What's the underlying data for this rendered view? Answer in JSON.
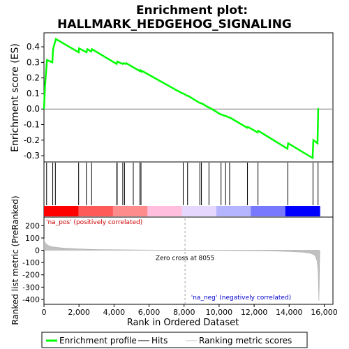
{
  "chart_data": {
    "type": "line",
    "title": "Enrichment plot:\nHALLMARK_HEDGEHOG_SIGNALING",
    "title_lines": [
      "Enrichment plot:",
      "HALLMARK_HEDGEHOG_SIGNALING"
    ],
    "top_panel": {
      "ylabel": "Enrichment score (ES)",
      "ylim": [
        -0.34,
        0.49
      ],
      "yticks": [
        -0.3,
        -0.2,
        -0.1,
        0.0,
        0.1,
        0.2,
        0.3,
        0.4
      ],
      "ytick_labels": [
        "-0.3",
        "-0.2",
        "-0.1",
        "0.0",
        "0.1",
        "0.2",
        "0.3",
        "0.4"
      ],
      "series": [
        {
          "name": "Enrichment profile",
          "color": "#00ff00",
          "x": [
            0,
            60,
            170,
            480,
            520,
            680,
            1980,
            2000,
            2430,
            2470,
            2700,
            2740,
            4150,
            4190,
            4500,
            4540,
            4650,
            4700,
            5460,
            5500,
            5560,
            5600,
            7900,
            7960,
            8180,
            8230,
            8880,
            8920,
            8990,
            9030,
            9400,
            9440,
            10090,
            10130,
            10350,
            10390,
            10580,
            10620,
            11600,
            11640,
            12200,
            12240,
            13900,
            13940,
            15340,
            15380,
            15620,
            15660
          ],
          "y": [
            0.0,
            0.15,
            0.315,
            0.3,
            0.385,
            0.45,
            0.365,
            0.39,
            0.365,
            0.385,
            0.37,
            0.385,
            0.29,
            0.305,
            0.29,
            0.295,
            0.29,
            0.295,
            0.245,
            0.25,
            0.24,
            0.245,
            0.1,
            0.1,
            0.085,
            0.085,
            0.04,
            0.04,
            0.035,
            0.035,
            0.01,
            0.01,
            -0.035,
            -0.035,
            -0.045,
            -0.045,
            -0.055,
            -0.055,
            -0.12,
            -0.115,
            -0.15,
            -0.14,
            -0.255,
            -0.22,
            -0.315,
            -0.2,
            -0.22,
            0.005
          ]
        }
      ],
      "zero_line_color": "#808080"
    },
    "hits_panel": {
      "series_name": "Hits",
      "hit_positions": [
        150,
        500,
        650,
        1980,
        2420,
        2720,
        4160,
        4180,
        4500,
        4600,
        5100,
        5480,
        5540,
        7950,
        8200,
        8900,
        8990,
        9420,
        10110,
        10370,
        10600,
        11620,
        12220,
        13920,
        15360,
        15650
      ]
    },
    "color_bar": {
      "colors": [
        "#ff0000",
        "#ff5a5a",
        "#ff8c8c",
        "#ffbedd",
        "#e6d7ff",
        "#b4b4ff",
        "#7878ff",
        "#0000ff"
      ]
    },
    "bottom_panel": {
      "ylabel": "Ranked list metric (PreRanked)",
      "xlabel": "Rank in Ordered Dataset",
      "ylim": [
        -440,
        270
      ],
      "yticks": [
        -400,
        -300,
        -200,
        -100,
        0,
        100,
        200
      ],
      "ytick_labels": [
        "-400",
        "-300",
        "-200",
        "-100",
        "0",
        "100",
        "200"
      ],
      "series_name": "Ranking metric scores",
      "fill_color": "#c0c0c0",
      "x": [
        0,
        50,
        150,
        300,
        500,
        800,
        1200,
        2000,
        3000,
        4000,
        6000,
        8055,
        10000,
        12000,
        13000,
        14000,
        14800,
        15200,
        15400,
        15500,
        15600,
        15650,
        15700,
        15750
      ],
      "y": [
        90,
        65,
        48,
        35,
        28,
        22,
        17,
        11,
        6,
        4,
        2,
        0,
        -2,
        -4,
        -6,
        -10,
        -16,
        -24,
        -35,
        -50,
        -90,
        -170,
        -410,
        0
      ],
      "zero_cross_rank": 8055,
      "zero_cross_label": "Zero cross at 8055",
      "pos_label": "'na_pos' (positively correlated)",
      "neg_label": "'na_neg' (negatively correlated)",
      "pos_label_color": "#cc0000",
      "neg_label_color": "#0000cc"
    },
    "xaxis": {
      "xlim": [
        0,
        16500
      ],
      "xticks": [
        0,
        2000,
        4000,
        6000,
        8000,
        10000,
        12000,
        14000,
        16000
      ],
      "xtick_labels": [
        "0",
        "2,000",
        "4,000",
        "6,000",
        "8,000",
        "10,000",
        "12,000",
        "14,000",
        "16,000"
      ]
    },
    "legend": {
      "placement": "bottom",
      "entries": [
        {
          "label": "Enrichment profile",
          "color": "#00ff00",
          "style": "thick-line"
        },
        {
          "label": "Hits",
          "color": "#000000",
          "style": "thin-line"
        },
        {
          "label": "Ranking metric scores",
          "color": "#c0c0c0",
          "style": "thin-line"
        }
      ]
    },
    "grid": false
  }
}
